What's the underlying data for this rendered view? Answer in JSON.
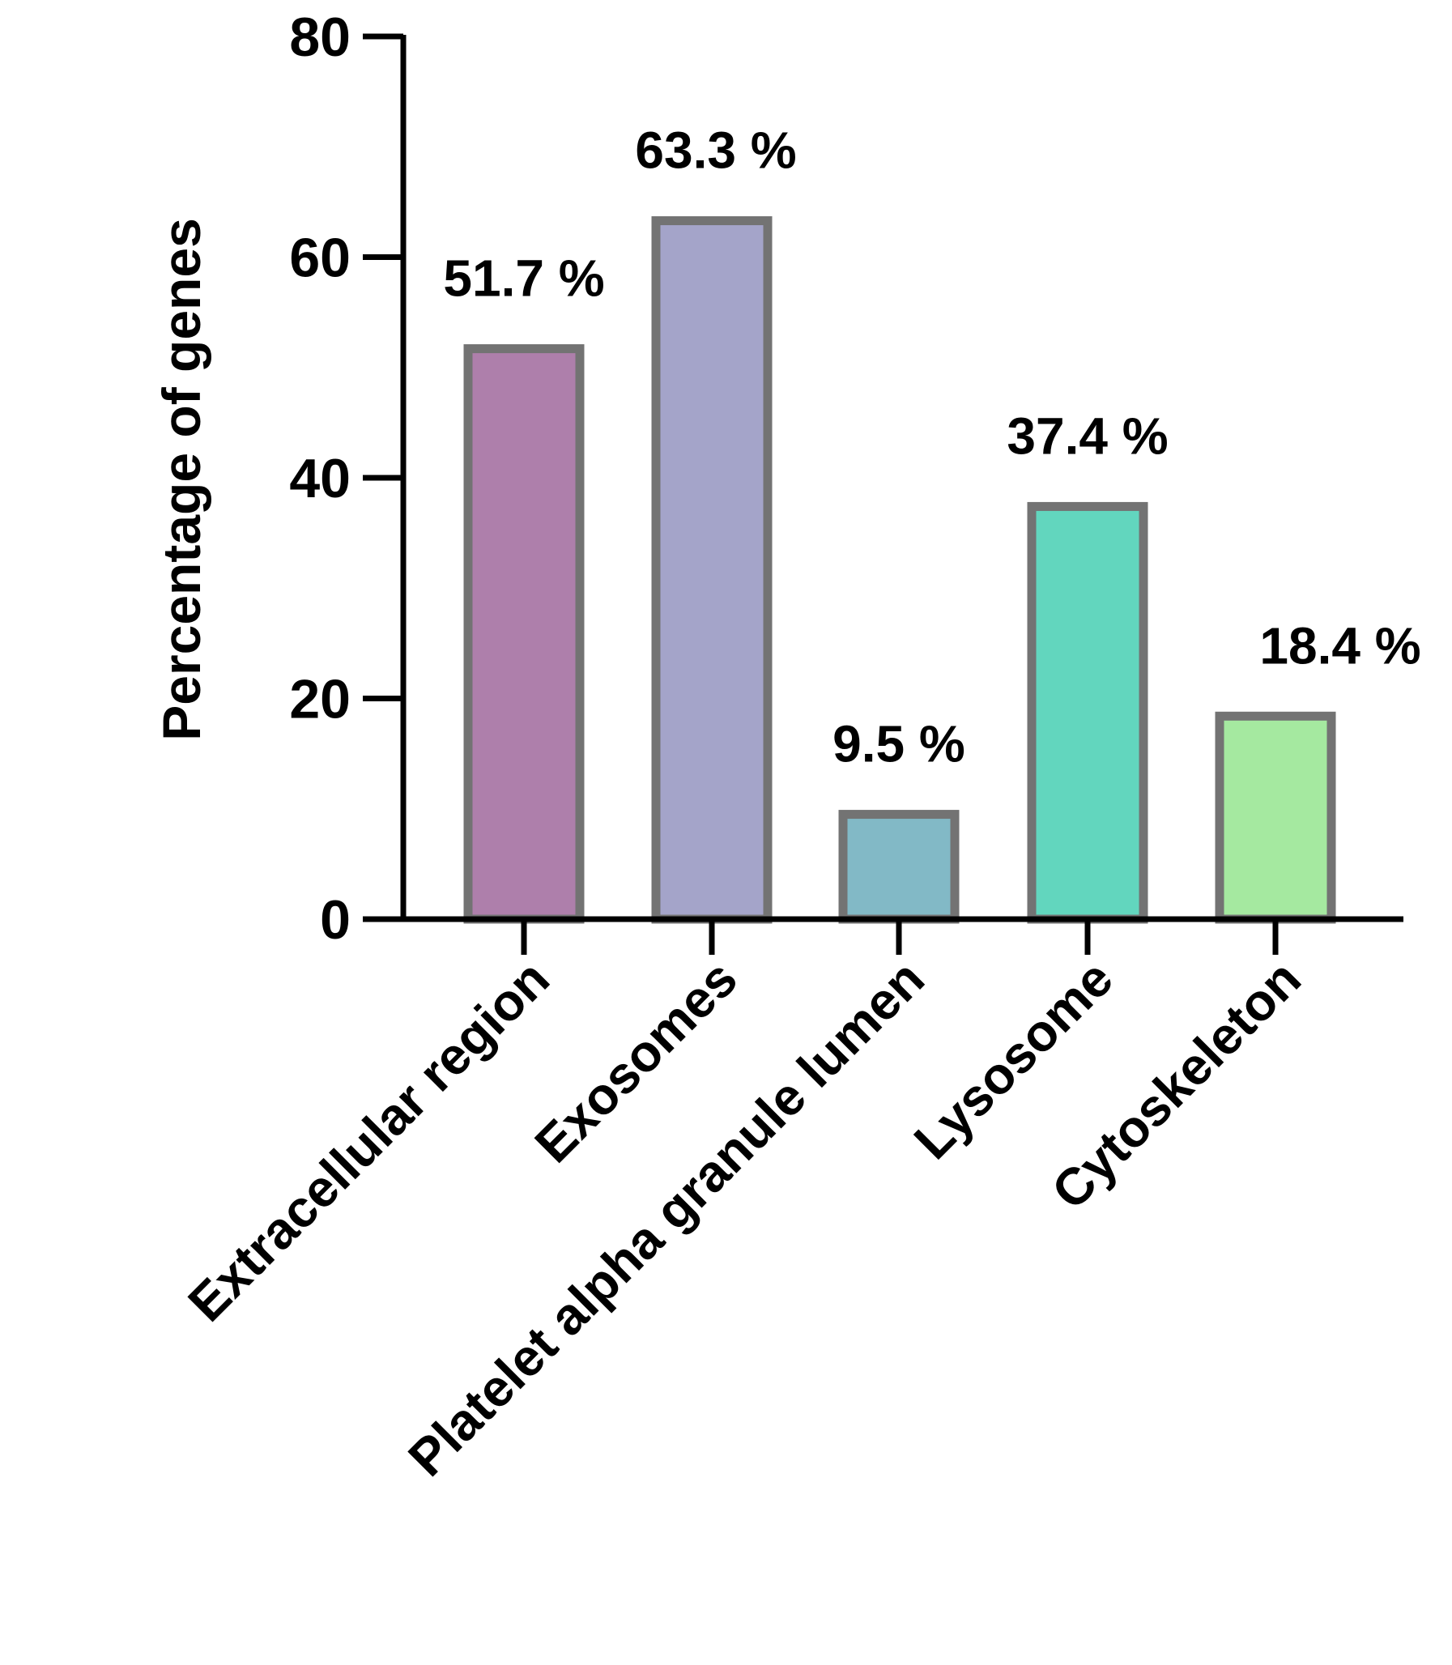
{
  "chart_data": {
    "type": "bar",
    "title": "",
    "xlabel": "",
    "ylabel": "Percentage of genes",
    "ylim": [
      0,
      80
    ],
    "yticks": [
      0,
      20,
      40,
      60,
      80
    ],
    "grid": false,
    "categories": [
      "Extracellular region",
      "Exosomes",
      "Platelet alpha granule lumen",
      "Lysosome",
      "Cytoskeleton"
    ],
    "values": [
      51.7,
      63.3,
      9.5,
      37.4,
      18.4
    ],
    "data_labels": [
      "51.7 %",
      "63.3 %",
      "9.5 %",
      "37.4 %",
      "18.4 %"
    ],
    "colors": [
      "#ae7fab",
      "#a4a4c9",
      "#82b9c6",
      "#62d6be",
      "#a5e9a0"
    ],
    "bar_outline_color": "#737373",
    "axis_color": "#000000"
  }
}
